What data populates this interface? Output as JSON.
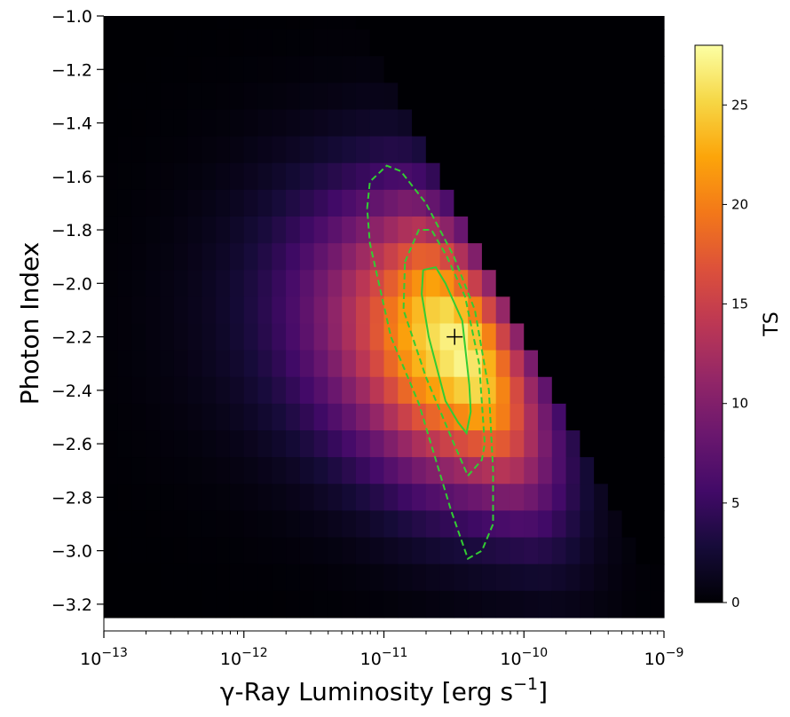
{
  "chart_data": {
    "type": "heatmap",
    "title": "",
    "xlabel": "γ-Ray Luminosity [erg s",
    "xlabel_superscript": "−1",
    "xlabel_suffix": "]",
    "ylabel": "Photon Index",
    "colorbar_label": "TS",
    "x_scale": "log",
    "x_range_erg_s": [
      1e-13,
      1e-09
    ],
    "y_range": [
      -3.3,
      -1.0
    ],
    "x_ticks": [
      {
        "value": 1e-13,
        "base": "10",
        "exp": "−13"
      },
      {
        "value": 1e-12,
        "base": "10",
        "exp": "−12"
      },
      {
        "value": 1e-11,
        "base": "10",
        "exp": "−11"
      },
      {
        "value": 1e-10,
        "base": "10",
        "exp": "−10"
      },
      {
        "value": 1e-09,
        "base": "10",
        "exp": "−9"
      }
    ],
    "y_ticks": [
      "−1.0",
      "−1.2",
      "−1.4",
      "−1.6",
      "−1.8",
      "−2.0",
      "−2.2",
      "−2.4",
      "−2.6",
      "−2.8",
      "−3.0",
      "−3.2"
    ],
    "y_tick_values": [
      -1.0,
      -1.2,
      -1.4,
      -1.6,
      -1.8,
      -2.0,
      -2.2,
      -2.4,
      -2.6,
      -2.8,
      -3.0,
      -3.2
    ],
    "colorbar": {
      "min": 0,
      "max": 28,
      "ticks": [
        "0",
        "5",
        "10",
        "15",
        "20",
        "25"
      ],
      "tick_values": [
        0,
        5,
        10,
        15,
        20,
        25
      ],
      "colormap": "inferno"
    },
    "grid": {
      "n_x": 40,
      "n_y": 23,
      "log_x_min": -13,
      "log_x_step": 0.1,
      "y_top": -1.0,
      "y_step": -0.1,
      "ts_peak": 27.5,
      "peak_log_x": -10.48,
      "peak_y": -2.25,
      "ridge_slope": -1.45,
      "ridge_sigma_log_x": 0.17,
      "ridge_sigma_y": 0.38,
      "left_tail_scale": 0.45,
      "upper_limit_log_x_at_y_minus1": -11.25,
      "upper_limit_slope": 0.25
    },
    "best_fit": {
      "luminosity_erg_s": 3.2e-11,
      "photon_index": -2.2,
      "marker": "+"
    },
    "contours": [
      {
        "style": "solid",
        "color": "#33cc33",
        "points": [
          [
            -10.72,
            -1.95
          ],
          [
            -10.63,
            -1.94
          ],
          [
            -10.56,
            -2.0
          ],
          [
            -10.44,
            -2.14
          ],
          [
            -10.39,
            -2.38
          ],
          [
            -10.38,
            -2.48
          ],
          [
            -10.41,
            -2.56
          ],
          [
            -10.47,
            -2.52
          ],
          [
            -10.56,
            -2.44
          ],
          [
            -10.68,
            -2.2
          ],
          [
            -10.73,
            -2.04
          ],
          [
            -10.72,
            -1.95
          ]
        ]
      },
      {
        "style": "dashed",
        "color": "#33cc33",
        "points": [
          [
            -10.85,
            -1.92
          ],
          [
            -10.75,
            -1.8
          ],
          [
            -10.66,
            -1.8
          ],
          [
            -10.55,
            -1.9
          ],
          [
            -10.42,
            -2.05
          ],
          [
            -10.32,
            -2.3
          ],
          [
            -10.28,
            -2.6
          ],
          [
            -10.3,
            -2.66
          ],
          [
            -10.4,
            -2.72
          ],
          [
            -10.5,
            -2.6
          ],
          [
            -10.7,
            -2.35
          ],
          [
            -10.86,
            -2.1
          ],
          [
            -10.85,
            -1.92
          ]
        ]
      },
      {
        "style": "dashed",
        "color": "#33cc33",
        "points": [
          [
            -11.12,
            -1.72
          ],
          [
            -11.1,
            -1.62
          ],
          [
            -10.98,
            -1.56
          ],
          [
            -10.88,
            -1.58
          ],
          [
            -10.7,
            -1.7
          ],
          [
            -10.5,
            -1.9
          ],
          [
            -10.35,
            -2.1
          ],
          [
            -10.25,
            -2.4
          ],
          [
            -10.22,
            -2.7
          ],
          [
            -10.22,
            -2.9
          ],
          [
            -10.3,
            -3.0
          ],
          [
            -10.4,
            -3.03
          ],
          [
            -10.52,
            -2.85
          ],
          [
            -10.75,
            -2.45
          ],
          [
            -10.95,
            -2.2
          ],
          [
            -11.1,
            -1.85
          ],
          [
            -11.12,
            -1.72
          ]
        ]
      }
    ]
  }
}
